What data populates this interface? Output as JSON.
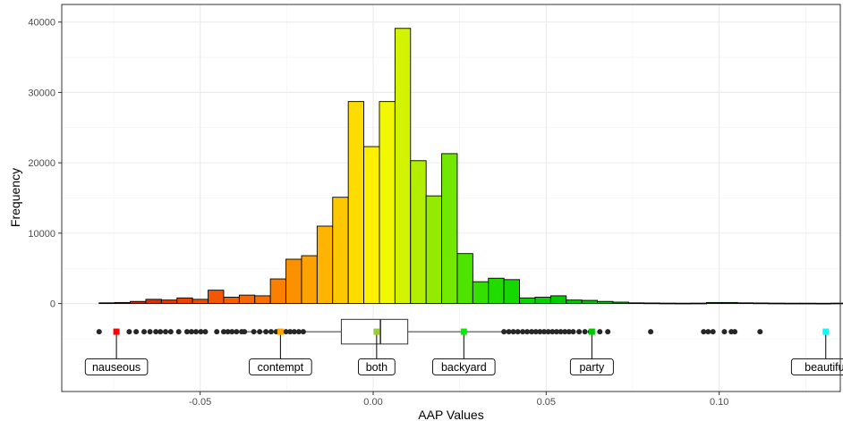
{
  "chart_data": {
    "type": "histogram",
    "xlabel": "AAP Values",
    "ylabel": "Frequency",
    "xlim": [
      -0.09,
      0.135
    ],
    "ylim": [
      -12500,
      42500
    ],
    "grid": true,
    "x_ticks": [
      -0.05,
      0.0,
      0.05,
      0.1
    ],
    "x_tick_labels": [
      "-0.05",
      "0.00",
      "0.05",
      "0.10"
    ],
    "y_ticks": [
      0,
      10000,
      20000,
      30000,
      40000
    ],
    "y_tick_labels": [
      "0",
      "10000",
      "20000",
      "30000",
      "40000"
    ],
    "bin_width": 0.0045,
    "bins": [
      {
        "x0": -0.0792,
        "count": 100,
        "color": "#b22000"
      },
      {
        "x0": -0.0747,
        "count": 150,
        "color": "#c02400"
      },
      {
        "x0": -0.0702,
        "count": 300,
        "color": "#cc2a00"
      },
      {
        "x0": -0.0657,
        "count": 600,
        "color": "#d83000"
      },
      {
        "x0": -0.0612,
        "count": 500,
        "color": "#e03a00"
      },
      {
        "x0": -0.0567,
        "count": 800,
        "color": "#e84400"
      },
      {
        "x0": -0.0522,
        "count": 600,
        "color": "#ef4e00"
      },
      {
        "x0": -0.0477,
        "count": 1900,
        "color": "#f45700"
      },
      {
        "x0": -0.0432,
        "count": 900,
        "color": "#f65e00"
      },
      {
        "x0": -0.0387,
        "count": 1200,
        "color": "#f86600"
      },
      {
        "x0": -0.0342,
        "count": 1100,
        "color": "#fa7000"
      },
      {
        "x0": -0.0297,
        "count": 3500,
        "color": "#fb8000"
      },
      {
        "x0": -0.0252,
        "count": 6300,
        "color": "#fc9100"
      },
      {
        "x0": -0.0207,
        "count": 6800,
        "color": "#fda200"
      },
      {
        "x0": -0.0162,
        "count": 11000,
        "color": "#feb400"
      },
      {
        "x0": -0.0117,
        "count": 15100,
        "color": "#fec800"
      },
      {
        "x0": -0.0072,
        "count": 28700,
        "color": "#ffdc00"
      },
      {
        "x0": -0.0027,
        "count": 22300,
        "color": "#fff000"
      },
      {
        "x0": 0.0018,
        "count": 28700,
        "color": "#f2f800"
      },
      {
        "x0": 0.0063,
        "count": 39100,
        "color": "#d2f400"
      },
      {
        "x0": 0.0108,
        "count": 20300,
        "color": "#b2ee00"
      },
      {
        "x0": 0.0153,
        "count": 15300,
        "color": "#94ea00"
      },
      {
        "x0": 0.0198,
        "count": 21300,
        "color": "#72e800"
      },
      {
        "x0": 0.0243,
        "count": 7100,
        "color": "#4ce400"
      },
      {
        "x0": 0.0288,
        "count": 3100,
        "color": "#34e000"
      },
      {
        "x0": 0.0333,
        "count": 3600,
        "color": "#22dc00"
      },
      {
        "x0": 0.0378,
        "count": 3400,
        "color": "#14d800"
      },
      {
        "x0": 0.0423,
        "count": 800,
        "color": "#0cd400"
      },
      {
        "x0": 0.0468,
        "count": 900,
        "color": "#06d000"
      },
      {
        "x0": 0.0513,
        "count": 1100,
        "color": "#00cc00"
      },
      {
        "x0": 0.0558,
        "count": 500,
        "color": "#00c800"
      },
      {
        "x0": 0.0603,
        "count": 450,
        "color": "#00c400"
      },
      {
        "x0": 0.0648,
        "count": 300,
        "color": "#00c000"
      },
      {
        "x0": 0.0693,
        "count": 200,
        "color": "#00bc00"
      },
      {
        "x0": 0.0738,
        "count": 100,
        "color": "#00b800"
      },
      {
        "x0": 0.0783,
        "count": 80,
        "color": "#00b400"
      },
      {
        "x0": 0.0828,
        "count": 60,
        "color": "#00b000"
      },
      {
        "x0": 0.0873,
        "count": 50,
        "color": "#00ac00"
      },
      {
        "x0": 0.0918,
        "count": 60,
        "color": "#00a800"
      },
      {
        "x0": 0.0963,
        "count": 150,
        "color": "#00a400"
      },
      {
        "x0": 0.1008,
        "count": 150,
        "color": "#00a000"
      },
      {
        "x0": 0.1053,
        "count": 100,
        "color": "#009c00"
      },
      {
        "x0": 0.1098,
        "count": 80,
        "color": "#009800"
      },
      {
        "x0": 0.1143,
        "count": 60,
        "color": "#009400"
      },
      {
        "x0": 0.1188,
        "count": 50,
        "color": "#009000"
      },
      {
        "x0": 0.1233,
        "count": 50,
        "color": "#008c00"
      },
      {
        "x0": 0.1278,
        "count": 40,
        "color": "#008800"
      },
      {
        "x0": 0.1323,
        "count": 60,
        "color": "#008400"
      }
    ],
    "boxplot": {
      "y": -4000,
      "height": 3500,
      "q1": -0.0092,
      "median": 0.0021,
      "q3": 0.01,
      "whisker_low": -0.0365,
      "whisker_high": 0.0385
    },
    "outliers": [
      -0.0792,
      -0.0742,
      -0.0705,
      -0.0685,
      -0.0662,
      -0.0645,
      -0.0628,
      -0.0615,
      -0.06,
      -0.0585,
      -0.0562,
      -0.0538,
      -0.0525,
      -0.0512,
      -0.0498,
      -0.0485,
      -0.0452,
      -0.0432,
      -0.042,
      -0.0408,
      -0.0395,
      -0.038,
      -0.0345,
      -0.0328,
      -0.031,
      -0.0295,
      -0.028,
      -0.0265,
      -0.0252,
      -0.024,
      -0.0228,
      -0.0215,
      -0.0202,
      -0.0372,
      0.0378,
      0.0392,
      0.0405,
      0.0418,
      0.0432,
      0.0445,
      0.0458,
      0.047,
      0.0482,
      0.0494,
      0.0506,
      0.0518,
      0.053,
      0.0542,
      0.0554,
      0.0566,
      0.0578,
      0.0595,
      0.0612,
      0.0628,
      0.0655,
      0.0678,
      0.0802,
      0.0955,
      0.0968,
      0.0982,
      0.1015,
      0.1035,
      0.1045,
      0.1118
    ],
    "words": [
      {
        "word": "nauseous",
        "value": -0.0742,
        "color": "#ff0000"
      },
      {
        "word": "contempt",
        "value": -0.0268,
        "color": "#ffa500"
      },
      {
        "word": "both",
        "value": 0.001,
        "color": "#9acd32"
      },
      {
        "word": "backyard",
        "value": 0.0262,
        "color": "#00ee00"
      },
      {
        "word": "party",
        "value": 0.0632,
        "color": "#00c800"
      },
      {
        "word": "beautiful",
        "value": 0.1308,
        "color": "#00ffff"
      }
    ],
    "label_y": -9000
  }
}
